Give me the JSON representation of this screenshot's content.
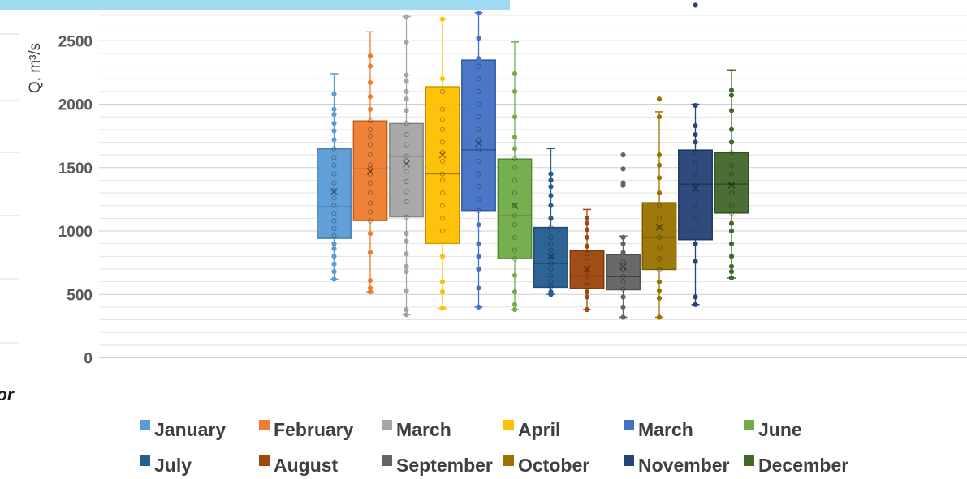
{
  "chart_data": {
    "type": "boxplot",
    "ylabel": "Q, m³/s",
    "ylim": [
      0,
      2750
    ],
    "yticks": [
      0,
      500,
      1000,
      1500,
      2000,
      2500
    ],
    "minor_grid_step": 100,
    "legend_position": "bottom",
    "left_fragment_text": "or",
    "series": [
      {
        "name": "January",
        "color": "#5b9bd5",
        "q1": 940,
        "median": 1190,
        "q3": 1650,
        "mean": 1310,
        "whisker_low": 620,
        "whisker_high": 2240,
        "points": [
          620,
          680,
          740,
          800,
          860,
          900,
          960,
          1020,
          1080,
          1140,
          1200,
          1260,
          1320,
          1380,
          1450,
          1520,
          1580,
          1650,
          1720,
          1790,
          1850,
          1920,
          1960,
          2080
        ]
      },
      {
        "name": "February",
        "color": "#ed7d31",
        "q1": 1080,
        "median": 1490,
        "q3": 1870,
        "mean": 1470,
        "whisker_low": 520,
        "whisker_high": 2570,
        "points": [
          520,
          550,
          610,
          830,
          980,
          1080,
          1150,
          1220,
          1300,
          1380,
          1450,
          1490,
          1520,
          1600,
          1680,
          1750,
          1800,
          1870,
          1960,
          2060,
          2170,
          2300,
          2380
        ]
      },
      {
        "name": "March",
        "color": "#a5a5a5",
        "q1": 1110,
        "median": 1590,
        "q3": 1850,
        "mean": 1530,
        "whisker_low": 340,
        "whisker_high": 2690,
        "points": [
          340,
          380,
          530,
          680,
          720,
          820,
          920,
          980,
          1110,
          1230,
          1310,
          1390,
          1470,
          1550,
          1590,
          1680,
          1760,
          1850,
          1950,
          2040,
          2100,
          2180,
          2230,
          2490,
          2690
        ]
      },
      {
        "name": "April",
        "color": "#ffc000",
        "q1": 900,
        "median": 1450,
        "q3": 2140,
        "mean": 1600,
        "whisker_low": 390,
        "whisker_high": 2670,
        "points": [
          390,
          520,
          600,
          800,
          1000,
          1100,
          1200,
          1300,
          1400,
          1450,
          1550,
          1620,
          1700,
          1800,
          1880,
          1960,
          2100,
          2200,
          2670
        ]
      },
      {
        "name": "March",
        "color": "#4472c4",
        "q1": 1160,
        "median": 1640,
        "q3": 2350,
        "mean": 1690,
        "whisker_low": 400,
        "whisker_high": 2720,
        "points": [
          400,
          550,
          700,
          800,
          900,
          1050,
          1160,
          1250,
          1350,
          1450,
          1550,
          1640,
          1720,
          1800,
          1900,
          2000,
          2100,
          2200,
          2300,
          2360,
          2520,
          2720
        ]
      },
      {
        "name": "June",
        "color": "#70ad47",
        "q1": 780,
        "median": 1120,
        "q3": 1570,
        "mean": 1200,
        "whisker_low": 380,
        "whisker_high": 2490,
        "points": [
          380,
          420,
          520,
          650,
          780,
          850,
          950,
          1050,
          1120,
          1200,
          1300,
          1400,
          1500,
          1570,
          1650,
          1740,
          1900,
          2100,
          2240
        ]
      },
      {
        "name": "July",
        "color": "#255e91",
        "q1": 555,
        "median": 745,
        "q3": 1030,
        "mean": 800,
        "whisker_low": 500,
        "whisker_high": 1650,
        "points": [
          500,
          520,
          560,
          600,
          650,
          700,
          745,
          800,
          850,
          900,
          950,
          1030,
          1100,
          1200,
          1280,
          1350,
          1400,
          1450
        ]
      },
      {
        "name": "August",
        "color": "#9e480e",
        "q1": 545,
        "median": 645,
        "q3": 845,
        "mean": 700,
        "whisker_low": 380,
        "whisker_high": 1170,
        "points": [
          380,
          480,
          520,
          560,
          600,
          645,
          700,
          760,
          820,
          880,
          950,
          1010,
          1060,
          1100
        ]
      },
      {
        "name": "September",
        "color": "#636363",
        "q1": 535,
        "median": 640,
        "q3": 815,
        "mean": 720,
        "whisker_low": 320,
        "whisker_high": 960,
        "points": [
          320,
          400,
          480,
          540,
          600,
          640,
          700,
          760,
          830,
          900,
          950,
          1360,
          1380,
          1490,
          1600
        ]
      },
      {
        "name": "October",
        "color": "#997300",
        "q1": 695,
        "median": 950,
        "q3": 1225,
        "mean": 1030,
        "whisker_low": 320,
        "whisker_high": 1940,
        "points": [
          320,
          470,
          530,
          600,
          695,
          780,
          870,
          950,
          1030,
          1100,
          1200,
          1300,
          1420,
          1520,
          1600,
          1900,
          2040
        ]
      },
      {
        "name": "November",
        "color": "#264478",
        "q1": 930,
        "median": 1370,
        "q3": 1640,
        "mean": 1340,
        "whisker_low": 420,
        "whisker_high": 2000,
        "points": [
          420,
          480,
          760,
          900,
          1000,
          1100,
          1200,
          1300,
          1370,
          1450,
          1540,
          1620,
          1700,
          1760,
          1830,
          1990,
          2780
        ]
      },
      {
        "name": "December",
        "color": "#43682b",
        "q1": 1140,
        "median": 1370,
        "q3": 1620,
        "mean": 1360,
        "whisker_low": 630,
        "whisker_high": 2270,
        "points": [
          630,
          680,
          720,
          800,
          900,
          1000,
          1060,
          1140,
          1200,
          1300,
          1370,
          1450,
          1520,
          1620,
          1700,
          1800,
          1950,
          2070,
          2110
        ]
      }
    ]
  }
}
